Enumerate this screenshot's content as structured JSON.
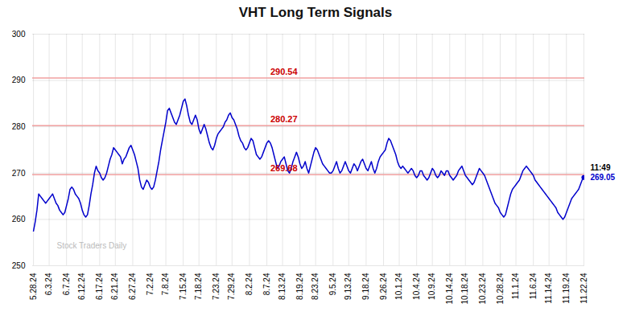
{
  "chart_data": {
    "type": "line",
    "title": "VHT Long Term Signals",
    "color": "#0000cc",
    "ylim": [
      250,
      300
    ],
    "yticks": [
      250,
      260,
      270,
      280,
      290,
      300
    ],
    "grid": true,
    "hlines": [
      {
        "y": 290.54,
        "color": "#f0a0a0"
      },
      {
        "y": 280.27,
        "color": "#f0a0a0"
      },
      {
        "y": 269.68,
        "color": "#f0a0a0"
      }
    ],
    "annotations": [
      {
        "text": "290.54",
        "y": 290.54,
        "color": "#cc0000"
      },
      {
        "text": "280.27",
        "y": 280.27,
        "color": "#cc0000"
      },
      {
        "text": "269.68",
        "y": 269.68,
        "color": "#cc0000"
      }
    ],
    "end_labels": [
      {
        "text": "11:49",
        "color": "#000000"
      },
      {
        "text": "269.05",
        "color": "#0000cc"
      }
    ],
    "watermark": "Stock Traders Daily",
    "categories": [
      "5.28.24",
      null,
      null,
      null,
      null,
      null,
      null,
      null,
      null,
      "6.3.24",
      null,
      null,
      null,
      null,
      null,
      null,
      null,
      null,
      null,
      "6.7.24",
      null,
      null,
      null,
      null,
      null,
      null,
      null,
      null,
      "6.12.24",
      null,
      null,
      null,
      null,
      null,
      null,
      null,
      null,
      null,
      "6.17.24",
      null,
      null,
      null,
      null,
      null,
      null,
      null,
      null,
      "6.21.24",
      null,
      null,
      null,
      null,
      null,
      null,
      null,
      null,
      null,
      "6.27.24",
      null,
      null,
      null,
      null,
      null,
      null,
      null,
      null,
      null,
      "7.2.24",
      null,
      null,
      null,
      null,
      null,
      null,
      null,
      null,
      "7.8.24",
      null,
      null,
      null,
      null,
      null,
      null,
      null,
      null,
      null,
      "7.15.24",
      null,
      null,
      null,
      null,
      null,
      null,
      null,
      null,
      "7.18.24",
      null,
      null,
      null,
      null,
      null,
      null,
      null,
      null,
      null,
      "7.23.24",
      null,
      null,
      null,
      null,
      null,
      null,
      null,
      null,
      "7.29.24",
      null,
      null,
      null,
      null,
      null,
      null,
      null,
      null,
      null,
      "8.2.24",
      null,
      null,
      null,
      null,
      null,
      null,
      null,
      null,
      null,
      "8.7.24",
      null,
      null,
      null,
      null,
      null,
      null,
      null,
      null,
      "8.13.24",
      null,
      null,
      null,
      null,
      null,
      null,
      null,
      null,
      null,
      "8.19.24",
      null,
      null,
      null,
      null,
      null,
      null,
      null,
      null,
      "8.23.24",
      null,
      null,
      null,
      null,
      null,
      null,
      null,
      null,
      null,
      "9.5.24",
      null,
      null,
      null,
      null,
      null,
      null,
      null,
      null,
      "9.13.24",
      null,
      null,
      null,
      null,
      null,
      null,
      null,
      null,
      null,
      "9.18.24",
      null,
      null,
      null,
      null,
      null,
      null,
      null,
      null,
      null,
      "9.26.24",
      null,
      null,
      null,
      null,
      null,
      null,
      null,
      null,
      "10.1.24",
      null,
      null,
      null,
      null,
      null,
      null,
      null,
      null,
      null,
      "10.4.24",
      null,
      null,
      null,
      null,
      null,
      null,
      null,
      null,
      "10.9.24",
      null,
      null,
      null,
      null,
      null,
      null,
      null,
      null,
      null,
      "10.14.24",
      null,
      null,
      null,
      null,
      null,
      null,
      null,
      null,
      "10.18.24",
      null,
      null,
      null,
      null,
      null,
      null,
      null,
      null,
      null,
      "10.23.24",
      null,
      null,
      null,
      null,
      null,
      null,
      null,
      null,
      null,
      "10.28.24",
      null,
      null,
      null,
      null,
      null,
      null,
      null,
      null,
      "11.1.24",
      null,
      null,
      null,
      null,
      null,
      null,
      null,
      null,
      null,
      "11.6.24",
      null,
      null,
      null,
      null,
      null,
      null,
      null,
      null,
      "11.14.24",
      null,
      null,
      null,
      null,
      null,
      null,
      null,
      null,
      null,
      "11.19.24",
      null,
      null,
      null,
      null,
      null,
      null,
      null,
      null,
      null,
      "11.22.24"
    ],
    "values": [
      257.5,
      259.5,
      262.0,
      265.5,
      265.0,
      264.5,
      264.0,
      263.5,
      264.0,
      264.5,
      265.0,
      265.5,
      264.5,
      263.5,
      263.0,
      262.0,
      261.5,
      261.0,
      261.5,
      263.0,
      264.5,
      266.5,
      267.0,
      266.5,
      265.5,
      265.0,
      264.5,
      263.5,
      262.0,
      261.0,
      260.5,
      261.0,
      263.0,
      265.5,
      267.5,
      270.0,
      271.5,
      270.5,
      270.0,
      269.0,
      268.5,
      269.0,
      270.0,
      271.5,
      273.0,
      274.0,
      275.5,
      275.0,
      274.5,
      274.0,
      273.5,
      272.0,
      273.0,
      273.5,
      274.5,
      275.5,
      276.0,
      275.0,
      274.0,
      272.5,
      271.0,
      268.5,
      267.0,
      266.5,
      267.5,
      268.5,
      268.0,
      267.0,
      266.5,
      267.0,
      268.5,
      270.5,
      272.5,
      275.0,
      277.0,
      279.0,
      281.0,
      283.5,
      284.0,
      283.0,
      282.0,
      281.0,
      280.5,
      281.5,
      282.5,
      284.0,
      285.5,
      286.0,
      284.5,
      282.5,
      281.0,
      280.5,
      281.5,
      282.5,
      281.5,
      279.5,
      278.5,
      279.5,
      280.5,
      279.5,
      278.0,
      276.5,
      275.5,
      275.0,
      276.0,
      277.5,
      278.5,
      279.0,
      279.5,
      280.0,
      281.0,
      281.5,
      282.5,
      283.0,
      282.0,
      281.5,
      280.5,
      279.5,
      278.0,
      277.0,
      276.5,
      275.5,
      275.0,
      275.5,
      276.5,
      277.5,
      277.0,
      275.5,
      274.0,
      273.5,
      273.0,
      273.5,
      274.5,
      275.5,
      276.5,
      277.0,
      276.5,
      275.5,
      274.0,
      272.5,
      271.0,
      271.5,
      272.5,
      273.0,
      273.5,
      272.0,
      270.5,
      270.0,
      271.0,
      272.5,
      273.5,
      274.5,
      273.5,
      272.0,
      271.0,
      271.5,
      272.5,
      271.0,
      270.0,
      271.5,
      273.0,
      274.5,
      275.5,
      275.0,
      274.0,
      273.0,
      272.0,
      271.5,
      271.0,
      270.5,
      270.0,
      270.0,
      270.5,
      271.5,
      272.5,
      271.0,
      270.0,
      270.5,
      271.5,
      272.5,
      271.5,
      270.5,
      270.0,
      271.0,
      272.0,
      271.5,
      270.5,
      271.5,
      272.5,
      273.0,
      272.0,
      271.0,
      270.5,
      271.5,
      272.5,
      271.0,
      270.0,
      271.0,
      272.5,
      273.5,
      274.0,
      274.5,
      275.0,
      276.5,
      277.5,
      277.0,
      276.0,
      275.0,
      274.0,
      272.5,
      271.5,
      271.0,
      271.5,
      271.0,
      270.5,
      270.0,
      270.5,
      271.0,
      270.5,
      269.5,
      269.0,
      269.5,
      270.5,
      270.5,
      269.5,
      269.0,
      268.5,
      269.0,
      270.0,
      271.0,
      270.5,
      269.5,
      269.0,
      269.5,
      270.5,
      270.0,
      269.5,
      270.5,
      270.5,
      269.5,
      269.0,
      268.5,
      269.0,
      269.5,
      270.5,
      271.0,
      271.5,
      270.5,
      269.5,
      269.0,
      268.5,
      268.0,
      267.5,
      268.0,
      269.0,
      270.0,
      271.0,
      270.5,
      270.0,
      269.5,
      268.5,
      267.5,
      266.5,
      265.5,
      264.5,
      263.5,
      263.0,
      262.5,
      261.5,
      261.0,
      260.5,
      261.0,
      262.5,
      264.0,
      265.5,
      266.5,
      267.0,
      267.5,
      268.0,
      268.5,
      269.5,
      270.5,
      271.0,
      271.5,
      271.0,
      270.5,
      270.0,
      269.5,
      268.5,
      268.0,
      267.5,
      267.0,
      266.5,
      266.0,
      265.5,
      265.0,
      264.5,
      264.0,
      263.5,
      263.0,
      262.5,
      261.5,
      261.0,
      260.5,
      260.0,
      260.5,
      261.5,
      262.5,
      263.5,
      264.5,
      265.0,
      265.5,
      266.0,
      266.5,
      267.5,
      268.5,
      269.05
    ]
  }
}
